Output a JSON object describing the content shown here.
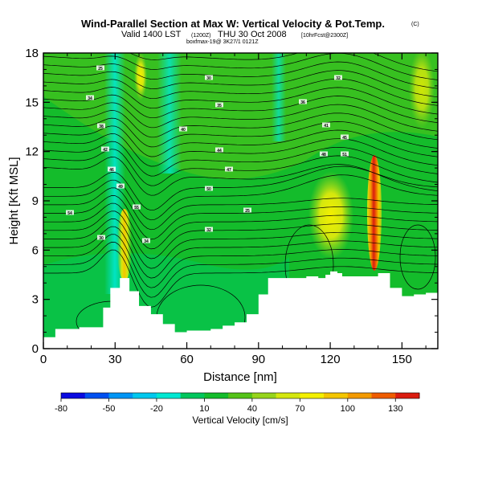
{
  "header": {
    "title": "Wind-Parallel Section at Max W: Vertical Velocity & Pot.Temp.",
    "title_mark": "(C)",
    "valid_main": "Valid 1400 LST",
    "valid_paren": "(1200Z)",
    "valid_day": "THU 30 Oct 2008",
    "valid_run": "[10hrFcst@2300Z]",
    "source_line": "boxfmax-19@ 3K27/1 0121Z"
  },
  "colors": {
    "background": "#ffffff",
    "terrain": "#ffffff",
    "contour": "#000000"
  },
  "chart_data": {
    "type": "heatmap",
    "xlabel": "Distance [nm]",
    "ylabel": "Height [Kft MSL]",
    "xlim": [
      0,
      165
    ],
    "ylim": [
      0,
      18
    ],
    "x_ticks": [
      "0",
      "30",
      "60",
      "90",
      "120",
      "150"
    ],
    "y_ticks": [
      "0",
      "3",
      "6",
      "9",
      "12",
      "15",
      "18"
    ],
    "colorbar": {
      "label": "Vertical Velocity [cm/s]",
      "levels": [
        -80,
        -65,
        -50,
        -35,
        -20,
        -5,
        10,
        25,
        40,
        55,
        70,
        85,
        100,
        115,
        130,
        145
      ],
      "tick_labels": [
        "-80",
        "-50",
        "-20",
        "10",
        "40",
        "70",
        "100",
        "130"
      ],
      "colors": [
        "#0a0ae0",
        "#0050f0",
        "#0095f5",
        "#00c8ee",
        "#00e8d2",
        "#00c65c",
        "#14bc2b",
        "#54c218",
        "#96d41b",
        "#d4e70e",
        "#f4f000",
        "#f4c600",
        "#f39a00",
        "#ee5c00",
        "#da1c10"
      ]
    },
    "field_description_values": {
      "background_w": 10,
      "updraft_peak_near_138nm": 140,
      "updraft_near_34nm": 75,
      "updraft_band_near_125nm": 60,
      "downdraft_near_25nm": -20
    },
    "terrain_height_kft": [
      [
        0,
        0.7
      ],
      [
        5,
        1.2
      ],
      [
        10,
        1.2
      ],
      [
        15,
        1.3
      ],
      [
        20,
        1.3
      ],
      [
        25,
        2.5
      ],
      [
        28,
        3.7
      ],
      [
        32,
        4.3
      ],
      [
        36,
        3.5
      ],
      [
        40,
        2.6
      ],
      [
        45,
        2.1
      ],
      [
        50,
        1.5
      ],
      [
        55,
        1.0
      ],
      [
        60,
        1.1
      ],
      [
        65,
        1.1
      ],
      [
        70,
        1.2
      ],
      [
        75,
        1.4
      ],
      [
        80,
        1.6
      ],
      [
        85,
        2.1
      ],
      [
        90,
        3.3
      ],
      [
        94,
        4.3
      ],
      [
        100,
        4.3
      ],
      [
        105,
        4.3
      ],
      [
        110,
        4.4
      ],
      [
        115,
        4.3
      ],
      [
        118,
        4.5
      ],
      [
        120,
        4.7
      ],
      [
        123,
        4.6
      ],
      [
        125,
        4.4
      ],
      [
        130,
        4.4
      ],
      [
        135,
        4.4
      ],
      [
        140,
        4.6
      ],
      [
        145,
        3.7
      ],
      [
        150,
        3.2
      ],
      [
        155,
        3.3
      ],
      [
        160,
        3.4
      ],
      [
        165,
        3.3
      ]
    ],
    "theta_contour_labels": [
      "25",
      "30",
      "32",
      "34",
      "35",
      "36",
      "38",
      "40",
      "41",
      "42",
      "44",
      "45",
      "46",
      "47",
      "48",
      "49",
      "50",
      "51",
      "54",
      "55"
    ]
  }
}
